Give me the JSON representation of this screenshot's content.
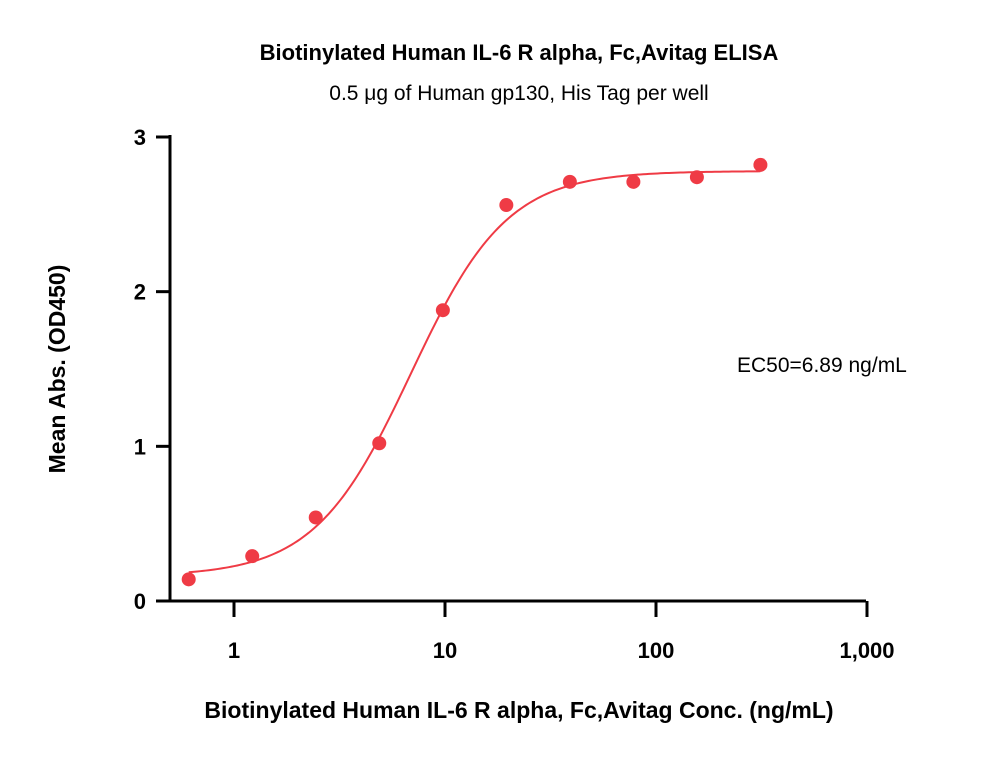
{
  "chart_data": {
    "type": "scatter",
    "title": "Biotinylated Human IL-6 R alpha, Fc,Avitag ELISA",
    "subtitle": "0.5 μg of Human gp130, His Tag per well",
    "xlabel": "Biotinylated Human IL-6 R alpha, Fc,Avitag Conc. (ng/mL)",
    "ylabel": "Mean Abs. (OD450)",
    "x_scale": "log",
    "xlim": [
      0.5,
      1000
    ],
    "ylim": [
      0,
      3
    ],
    "x_ticks": [
      1,
      10,
      100,
      1000
    ],
    "x_tick_labels": [
      "1",
      "10",
      "100",
      "1,000"
    ],
    "y_ticks": [
      0,
      1,
      2,
      3
    ],
    "y_tick_labels": [
      "0",
      "1",
      "2",
      "3"
    ],
    "series": [
      {
        "x": [
          0.61,
          1.22,
          2.44,
          4.88,
          9.77,
          19.53,
          39.06,
          78.13,
          156.25,
          312.5
        ],
        "y": [
          0.14,
          0.29,
          0.54,
          1.02,
          1.88,
          2.56,
          2.71,
          2.71,
          2.74,
          2.82
        ],
        "color": "#ef3b45"
      }
    ],
    "fit": {
      "model": "4PL",
      "bottom": 0.16,
      "top": 2.78,
      "ec50": 6.89,
      "hill": 1.9,
      "x_range": [
        0.61,
        312.5
      ],
      "color": "#ef3b45"
    },
    "annotation": "EC50=6.89 ng/mL"
  }
}
